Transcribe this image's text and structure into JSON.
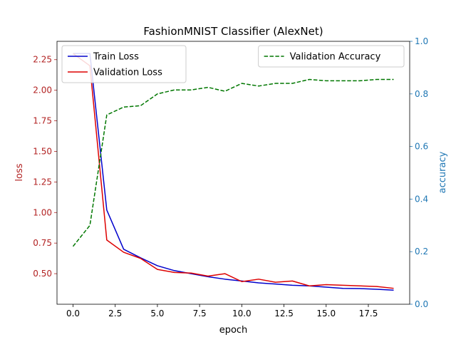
{
  "chart_data": {
    "type": "line",
    "title": "FashionMNIST Classifier (AlexNet)",
    "xlabel": "epoch",
    "ylabel_left": "loss",
    "ylabel_right": "accuracy",
    "xlim": [
      -0.95,
      19.95
    ],
    "ylim_left": [
      0.25,
      2.4
    ],
    "ylim_right": [
      0.0,
      1.0
    ],
    "xticks": [
      0.0,
      2.5,
      5.0,
      7.5,
      10.0,
      12.5,
      15.0,
      17.5
    ],
    "xtick_labels": [
      "0.0",
      "2.5",
      "5.0",
      "7.5",
      "10.0",
      "12.5",
      "15.0",
      "17.5"
    ],
    "yticks_left": [
      0.5,
      0.75,
      1.0,
      1.25,
      1.5,
      1.75,
      2.0,
      2.25
    ],
    "ytick_labels_left": [
      "0.50",
      "0.75",
      "1.00",
      "1.25",
      "1.50",
      "1.75",
      "2.00",
      "2.25"
    ],
    "yticks_right": [
      0.0,
      0.2,
      0.4,
      0.6,
      0.8,
      1.0
    ],
    "ytick_labels_right": [
      "0.0",
      "0.2",
      "0.4",
      "0.6",
      "0.8",
      "1.0"
    ],
    "x": [
      0,
      1,
      2,
      3,
      4,
      5,
      6,
      7,
      8,
      9,
      10,
      11,
      12,
      13,
      14,
      15,
      16,
      17,
      18,
      19
    ],
    "series": [
      {
        "name": "Train Loss",
        "axis": "left",
        "color": "#0000cc",
        "dash": "solid",
        "values": [
          2.3,
          2.3,
          1.02,
          0.7,
          0.63,
          0.565,
          0.525,
          0.5,
          0.475,
          0.455,
          0.44,
          0.425,
          0.415,
          0.405,
          0.4,
          0.39,
          0.38,
          0.378,
          0.372,
          0.365
        ]
      },
      {
        "name": "Validation Loss",
        "axis": "left",
        "color": "#dd0000",
        "dash": "solid",
        "values": [
          2.3,
          2.2,
          0.775,
          0.675,
          0.625,
          0.535,
          0.51,
          0.505,
          0.48,
          0.5,
          0.435,
          0.455,
          0.43,
          0.44,
          0.4,
          0.41,
          0.405,
          0.4,
          0.395,
          0.38
        ]
      },
      {
        "name": "Validation Accuracy",
        "axis": "right",
        "color": "#007700",
        "dash": "dashed",
        "values": [
          0.22,
          0.3,
          0.72,
          0.75,
          0.755,
          0.8,
          0.815,
          0.815,
          0.825,
          0.81,
          0.84,
          0.83,
          0.84,
          0.84,
          0.855,
          0.85,
          0.85,
          0.85,
          0.855,
          0.855
        ]
      }
    ],
    "legends": [
      {
        "placement": "upper-left",
        "entries": [
          "Train Loss",
          "Validation Loss"
        ]
      },
      {
        "placement": "upper-right",
        "entries": [
          "Validation Accuracy"
        ]
      }
    ],
    "grid": false,
    "colors": {
      "left_axis": "#b22222",
      "right_axis": "#1f77b4",
      "frame": "#000000"
    }
  }
}
